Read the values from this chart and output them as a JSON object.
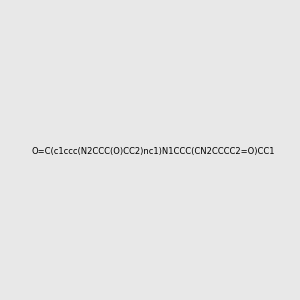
{
  "smiles": "O=C(c1ccc(N2CCC(O)CC2)nc1)N1CCC(CN2CCCC2=O)CC1",
  "image_size": 300,
  "background_color": "#e8e8e8",
  "title": ""
}
